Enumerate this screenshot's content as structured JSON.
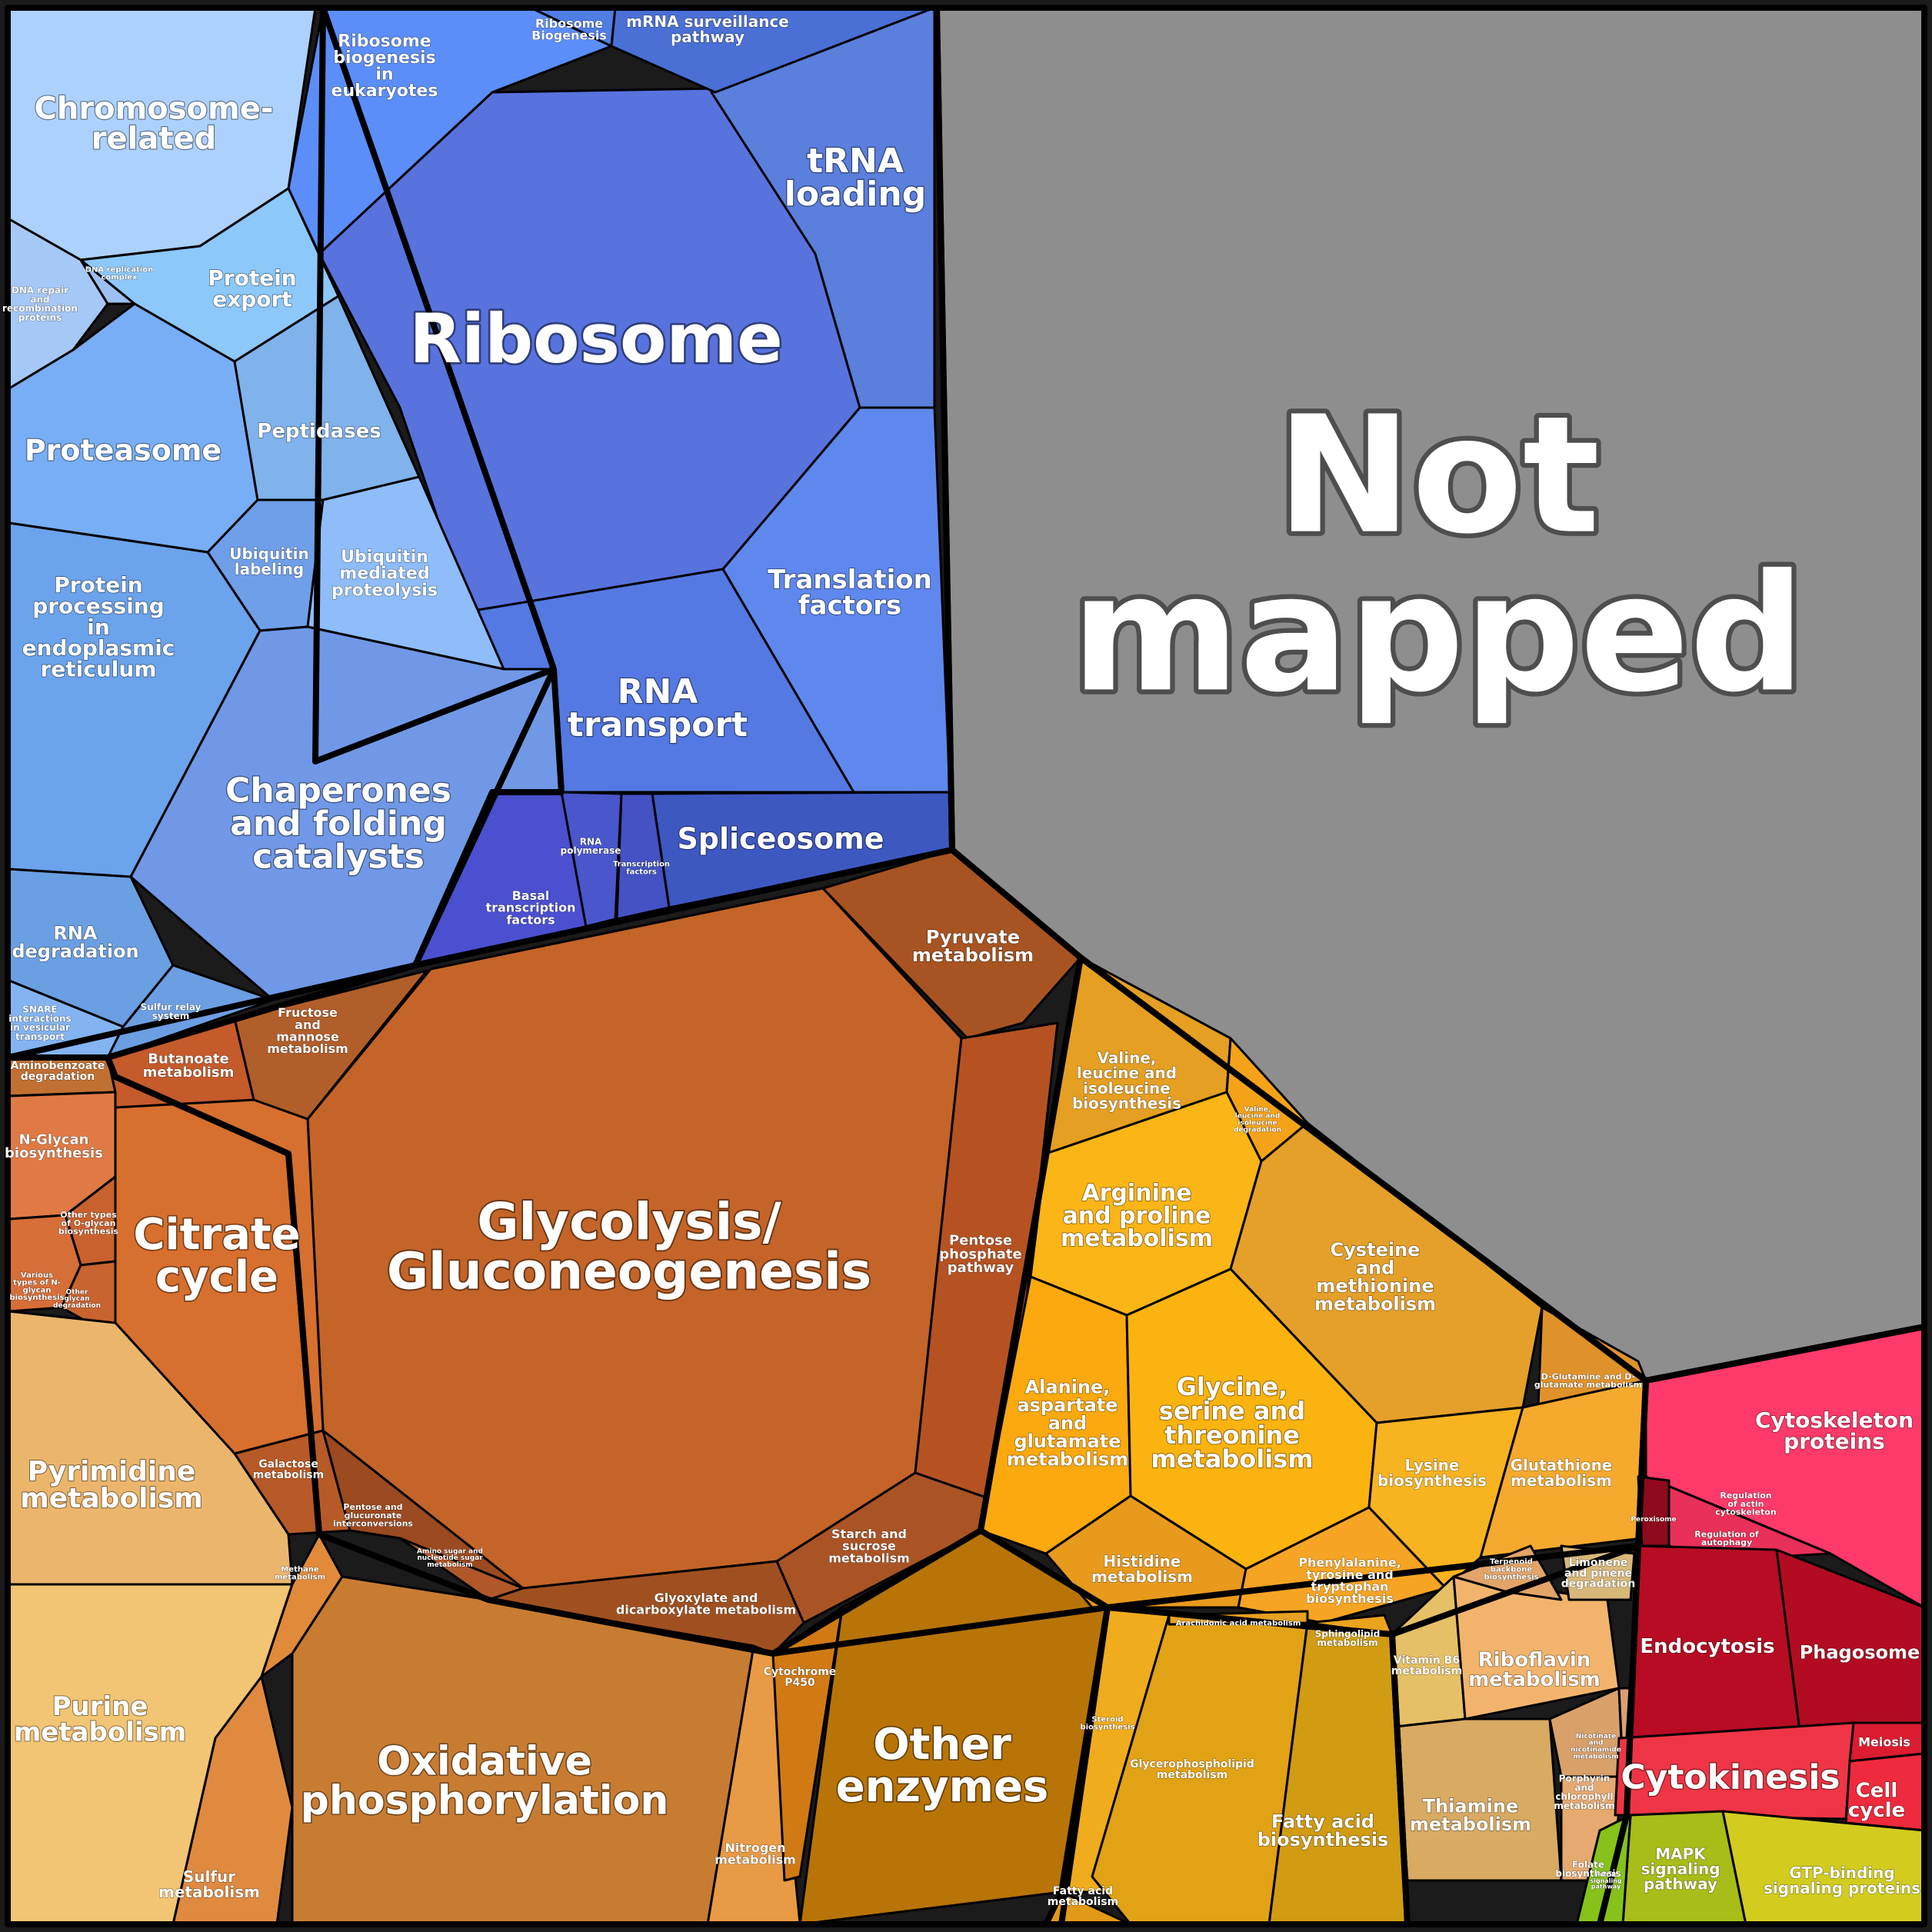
{
  "diagram": {
    "cells": [
      {
        "id": "not-mapped",
        "lines": [
          "Not",
          "mapped"
        ],
        "color": "#8f8e8f"
      },
      {
        "id": "ribosome",
        "lines": [
          "Ribosome"
        ],
        "color": "#5873de"
      },
      {
        "id": "trna-loading",
        "lines": [
          "tRNA",
          "loading"
        ],
        "color": "#5a7fdc"
      },
      {
        "id": "translation-factors",
        "lines": [
          "Translation",
          "factors"
        ],
        "color": "#5f88ee"
      },
      {
        "id": "rna-transport",
        "lines": [
          "RNA",
          "transport"
        ],
        "color": "#5479e2"
      },
      {
        "id": "spliceosome",
        "lines": [
          "Spliceosome"
        ],
        "color": "#3e58c2"
      },
      {
        "id": "ribosome-biogenesis-eukaryotes",
        "lines": [
          "Ribosome",
          "biogenesis",
          "in",
          "eukaryotes"
        ],
        "color": "#5b8ef9"
      },
      {
        "id": "ribosome-biogenesis",
        "lines": [
          "Ribosome",
          "Biogenesis"
        ],
        "color": "#4e7de4"
      },
      {
        "id": "mrna-surveillance",
        "lines": [
          "mRNA surveillance",
          "pathway"
        ],
        "color": "#4a70d6"
      },
      {
        "id": "rna-polymerase",
        "lines": [
          "RNA",
          "polymerase"
        ],
        "color": "#4a56cc"
      },
      {
        "id": "transcription-factors",
        "lines": [
          "Transcription",
          "factors"
        ],
        "color": "#4452c4"
      },
      {
        "id": "basal-transcription-factors",
        "lines": [
          "Basal",
          "transcription",
          "factors"
        ],
        "color": "#4a50cf"
      },
      {
        "id": "chromosome-related",
        "lines": [
          "Chromosome-",
          "related"
        ],
        "color": "#acd1fd"
      },
      {
        "id": "protein-export",
        "lines": [
          "Protein",
          "export"
        ],
        "color": "#8dc8fb"
      },
      {
        "id": "dna-repair",
        "lines": [
          "DNA repair",
          "and",
          "recombination",
          "proteins"
        ],
        "color": "#a6c8f6"
      },
      {
        "id": "dna-replication-complex",
        "lines": [
          "DNA replication",
          "complex"
        ],
        "color": "#9cc0f2"
      },
      {
        "id": "proteasome",
        "lines": [
          "Proteasome"
        ],
        "color": "#78aef5"
      },
      {
        "id": "peptidases",
        "lines": [
          "Peptidases"
        ],
        "color": "#80b2ec"
      },
      {
        "id": "ubiquitin-labeling",
        "lines": [
          "Ubiquitin",
          "labeling"
        ],
        "color": "#6f9fe9"
      },
      {
        "id": "ubiquitin-mediated-proteolysis",
        "lines": [
          "Ubiquitin",
          "mediated",
          "proteolysis"
        ],
        "color": "#8ebdfa"
      },
      {
        "id": "protein-processing-er",
        "lines": [
          "Protein",
          "processing",
          "in",
          "endoplasmic",
          "reticulum"
        ],
        "color": "#6ba3ec"
      },
      {
        "id": "chaperones",
        "lines": [
          "Chaperones",
          "and folding",
          "catalysts"
        ],
        "color": "#7098e7"
      },
      {
        "id": "rna-degradation",
        "lines": [
          "RNA",
          "degradation"
        ],
        "color": "#6a9fe2"
      },
      {
        "id": "snare",
        "lines": [
          "SNARE",
          "interactions",
          "in vesicular",
          "transport"
        ],
        "color": "#83b4f1"
      },
      {
        "id": "sulfur-relay",
        "lines": [
          "Sulfur relay",
          "system"
        ],
        "color": "#6c9ee2"
      },
      {
        "id": "glycolysis",
        "lines": [
          "Glycolysis/",
          "Gluconeogenesis"
        ],
        "color": "#c46428"
      },
      {
        "id": "pyruvate-metabolism",
        "lines": [
          "Pyruvate",
          "metabolism"
        ],
        "color": "#a85422"
      },
      {
        "id": "pentose-phosphate",
        "lines": [
          "Pentose",
          "phosphate",
          "pathway"
        ],
        "color": "#b65222"
      },
      {
        "id": "starch-sucrose",
        "lines": [
          "Starch and",
          "sucrose",
          "metabolism"
        ],
        "color": "#aa5425"
      },
      {
        "id": "glyoxylate",
        "lines": [
          "Glyoxylate and",
          "dicarboxylate metabolism"
        ],
        "color": "#a05020"
      },
      {
        "id": "citrate-cycle",
        "lines": [
          "Citrate",
          "cycle"
        ],
        "color": "#d76f2e"
      },
      {
        "id": "fructose-mannose",
        "lines": [
          "Fructose",
          "and",
          "mannose",
          "metabolism"
        ],
        "color": "#b25e2a"
      },
      {
        "id": "butanoate",
        "lines": [
          "Butanoate",
          "metabolism"
        ],
        "color": "#c55a2b"
      },
      {
        "id": "galactose",
        "lines": [
          "Galactose",
          "metabolism"
        ],
        "color": "#b85a27"
      },
      {
        "id": "pentose-glucuronate",
        "lines": [
          "Pentose and",
          "glucuronate",
          "interconversions"
        ],
        "color": "#9c4a1f"
      },
      {
        "id": "amino-sugar",
        "lines": [
          "Amino sugar and",
          "nucleotide sugar",
          "metabolism"
        ],
        "color": "#b0582a"
      },
      {
        "id": "aminobenzoate",
        "lines": [
          "Aminobenzoate",
          "degradation"
        ],
        "color": "#c27032"
      },
      {
        "id": "n-glycan",
        "lines": [
          "N-Glycan",
          "biosynthesis"
        ],
        "color": "#e07a45"
      },
      {
        "id": "other-o-glycan",
        "lines": [
          "Other types",
          "of O-glycan",
          "biosynthesis"
        ],
        "color": "#c8612e"
      },
      {
        "id": "various-n-glycan",
        "lines": [
          "Various",
          "types of N-",
          "glycan",
          "biosynthesis"
        ],
        "color": "#d66e38"
      },
      {
        "id": "other-glycan-degradation",
        "lines": [
          "Other",
          "glycan",
          "degradation"
        ],
        "color": "#c86430"
      },
      {
        "id": "pyrimidine",
        "lines": [
          "Pyrimidine",
          "metabolism"
        ],
        "color": "#ebb66c"
      },
      {
        "id": "purine",
        "lines": [
          "Purine",
          "metabolism"
        ],
        "color": "#f2c574"
      },
      {
        "id": "sulfur-metabolism",
        "lines": [
          "Sulfur",
          "metabolism"
        ],
        "color": "#e08a40"
      },
      {
        "id": "methane",
        "lines": [
          "Methane",
          "metabolism"
        ],
        "color": "#e08a3a"
      },
      {
        "id": "oxidative-phosphorylation",
        "lines": [
          "Oxidative",
          "phosphorylation"
        ],
        "color": "#c87c32"
      },
      {
        "id": "nitrogen",
        "lines": [
          "Nitrogen",
          "metabolism"
        ],
        "color": "#e89a44"
      },
      {
        "id": "cytochrome-p450",
        "lines": [
          "Cytochrome",
          "P450"
        ],
        "color": "#d17a14"
      },
      {
        "id": "other-enzymes",
        "lines": [
          "Other",
          "enzymes"
        ],
        "color": "#b87407"
      },
      {
        "id": "valine-biosynthesis",
        "lines": [
          "Valine,",
          "leucine and",
          "isoleucine",
          "biosynthesis"
        ],
        "color": "#e59f22"
      },
      {
        "id": "valine-degradation",
        "lines": [
          "Valine,",
          "leucine and",
          "isoleucine",
          "degradation"
        ],
        "color": "#f4a318"
      },
      {
        "id": "arginine-proline",
        "lines": [
          "Arginine",
          "and proline",
          "metabolism"
        ],
        "color": "#fbb517"
      },
      {
        "id": "cysteine-methionine",
        "lines": [
          "Cysteine",
          "and",
          "methionine",
          "metabolism"
        ],
        "color": "#e5a02a"
      },
      {
        "id": "alanine-aspartate",
        "lines": [
          "Alanine,",
          "aspartate",
          "and",
          "glutamate",
          "metabolism"
        ],
        "color": "#fba90e"
      },
      {
        "id": "glycine-serine",
        "lines": [
          "Glycine,",
          "serine and",
          "threonine",
          "metabolism"
        ],
        "color": "#fbb30f"
      },
      {
        "id": "lysine",
        "lines": [
          "Lysine",
          "biosynthesis"
        ],
        "color": "#f8b320"
      },
      {
        "id": "histidine",
        "lines": [
          "Histidine",
          "metabolism"
        ],
        "color": "#e89a1c"
      },
      {
        "id": "phenylalanine",
        "lines": [
          "Phenylalanine,",
          "tyrosine and",
          "tryptophan",
          "biosynthesis"
        ],
        "color": "#f6a424"
      },
      {
        "id": "d-glutamine",
        "lines": [
          "D-Glutamine and D-",
          "glutamate metabolism"
        ],
        "color": "#e0922a"
      },
      {
        "id": "glutathione",
        "lines": [
          "Glutathione",
          "metabolism"
        ],
        "color": "#f5aa2e"
      },
      {
        "id": "steroid",
        "lines": [
          "Steroid",
          "biosynthesis"
        ],
        "color": "#f0ac1c"
      },
      {
        "id": "glycerophospholipid",
        "lines": [
          "Glycerophospholipid",
          "metabolism"
        ],
        "color": "#e2a216"
      },
      {
        "id": "fatty-acid-biosynthesis",
        "lines": [
          "Fatty acid",
          "biosynthesis"
        ],
        "color": "#d19c12"
      },
      {
        "id": "fatty-acid-metabolism",
        "lines": [
          "Fatty acid",
          "metabolism"
        ],
        "color": "#e29918"
      },
      {
        "id": "sphingolipid",
        "lines": [
          "Sphingolipid",
          "metabolism"
        ],
        "color": "#eaa31c"
      },
      {
        "id": "arachidonic",
        "lines": [
          "Arachidonic acid metabolism"
        ],
        "color": "#e7a021"
      },
      {
        "id": "vitamin-b6",
        "lines": [
          "Vitamin B6",
          "metabolism"
        ],
        "color": "#e6c066"
      },
      {
        "id": "riboflavin",
        "lines": [
          "Riboflavin",
          "metabolism"
        ],
        "color": "#f2b46c"
      },
      {
        "id": "thiamine",
        "lines": [
          "Thiamine",
          "metabolism"
        ],
        "color": "#d8aa62"
      },
      {
        "id": "terpenoid",
        "lines": [
          "Terpenoid",
          "backbone",
          "biosynthesis"
        ],
        "color": "#e3a468"
      },
      {
        "id": "limonene",
        "lines": [
          "Limonene",
          "and pinene",
          "degradation"
        ],
        "color": "#d8b77a"
      },
      {
        "id": "porphyrin",
        "lines": [
          "Porphyrin",
          "and",
          "chlorophyll",
          "metabolism"
        ],
        "color": "#d9a06a"
      },
      {
        "id": "folate",
        "lines": [
          "Folate",
          "biosynthesis"
        ],
        "color": "#e6aa70"
      },
      {
        "id": "nicotinate",
        "lines": [
          "Nicotinate",
          "and",
          "nicotinamide",
          "metabolism"
        ],
        "color": "#dba071"
      },
      {
        "id": "cytoskeleton",
        "lines": [
          "Cytoskeleton",
          "proteins"
        ],
        "color": "#fd3a6a"
      },
      {
        "id": "regulation-actin",
        "lines": [
          "Regulation",
          "of actin",
          "cytoskeleton"
        ],
        "color": "#e83058"
      },
      {
        "id": "regulation-autophagy",
        "lines": [
          "Regulation of",
          "autophagy"
        ],
        "color": "#a10c22"
      },
      {
        "id": "peroxisome",
        "lines": [
          "Peroxisome"
        ],
        "color": "#8e0a1c"
      },
      {
        "id": "endocytosis",
        "lines": [
          "Endocytosis"
        ],
        "color": "#b70c24"
      },
      {
        "id": "phagosome",
        "lines": [
          "Phagosome"
        ],
        "color": "#b30c22"
      },
      {
        "id": "cytokinesis",
        "lines": [
          "Cytokinesis"
        ],
        "color": "#ef3545"
      },
      {
        "id": "meiosis",
        "lines": [
          "Meiosis"
        ],
        "color": "#dc1c30"
      },
      {
        "id": "cell-cycle",
        "lines": [
          "Cell",
          "cycle"
        ],
        "color": "#f02a3e"
      },
      {
        "id": "mapk",
        "lines": [
          "MAPK",
          "signaling",
          "pathway"
        ],
        "color": "#a8bd18"
      },
      {
        "id": "gtp-binding",
        "lines": [
          "GTP-binding",
          "signaling proteins"
        ],
        "color": "#d3cc1f"
      },
      {
        "id": "mtor",
        "lines": [
          "mTOR",
          "signaling",
          "pathway"
        ],
        "color": "#86c21a"
      }
    ]
  }
}
